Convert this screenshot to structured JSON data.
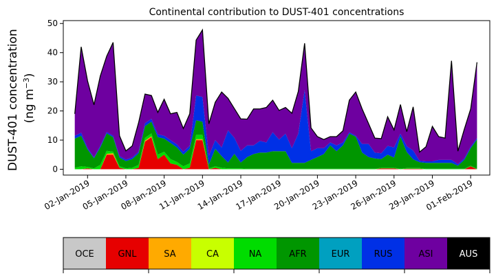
{
  "chart_data": {
    "type": "area",
    "stacked": true,
    "title": "Continental contribution to DUST-401 concentrations",
    "ylabel": "DUST-401 concentration",
    "ylabel_unit_prefix": "(ng m",
    "ylabel_unit_exponent": "−3",
    "ylabel_unit_suffix": ")",
    "ylim": [
      -2,
      51
    ],
    "yticks": [
      0,
      10,
      20,
      30,
      40,
      50
    ],
    "xlim_days": [
      -0.9,
      32.5
    ],
    "xticks": [
      {
        "day": 1,
        "label": "02-Jan-2019"
      },
      {
        "day": 4,
        "label": "05-Jan-2019"
      },
      {
        "day": 7,
        "label": "08-Jan-2019"
      },
      {
        "day": 10,
        "label": "11-Jan-2019"
      },
      {
        "day": 13,
        "label": "14-Jan-2019"
      },
      {
        "day": 16,
        "label": "17-Jan-2019"
      },
      {
        "day": 19,
        "label": "20-Jan-2019"
      },
      {
        "day": 22,
        "label": "23-Jan-2019"
      },
      {
        "day": 25,
        "label": "26-Jan-2019"
      },
      {
        "day": 28,
        "label": "29-Jan-2019"
      },
      {
        "day": 31,
        "label": "01-Feb-2019"
      }
    ],
    "x_start_label": "01-Jan-2019",
    "x_step_days": 0.5,
    "grid": false,
    "total_line_color": "#000000",
    "series": [
      {
        "name": "OCE",
        "color": "#c8c8c8",
        "values": [
          0,
          0,
          0,
          0,
          0,
          0,
          0,
          0,
          0,
          0,
          0,
          0,
          0,
          0,
          0,
          0,
          0,
          0,
          0,
          0,
          0,
          0,
          0,
          0,
          0,
          0,
          0,
          0,
          0,
          0,
          0,
          0,
          0,
          0,
          0,
          0,
          0,
          0,
          0,
          0,
          0,
          0,
          0,
          0,
          0,
          0,
          0,
          0,
          0,
          0,
          0,
          0,
          0,
          0,
          0,
          0,
          0,
          0,
          0,
          0,
          0,
          0,
          0,
          0
        ]
      },
      {
        "name": "GNL",
        "color": "#e60000",
        "values": [
          0,
          0,
          0.3,
          0,
          0,
          5,
          5,
          0.5,
          0,
          0,
          0.5,
          9.5,
          11,
          3.5,
          5,
          2,
          1.5,
          0,
          0.5,
          10,
          10,
          0,
          0.5,
          0,
          0,
          0,
          0,
          0,
          0,
          0,
          0,
          0,
          0,
          0,
          0,
          0,
          0,
          0,
          0,
          0,
          0,
          0,
          0,
          0,
          0,
          0,
          0,
          0,
          0.3,
          0.3,
          0.3,
          0,
          0.2,
          0.2,
          0.2,
          0,
          0,
          0,
          0,
          0,
          0,
          0,
          1,
          0
        ]
      },
      {
        "name": "SA",
        "color": "#ffaa00",
        "values": [
          0,
          0,
          0,
          0,
          0,
          0.3,
          0.5,
          0,
          0,
          0,
          0,
          0.3,
          0.3,
          0,
          0,
          0,
          0,
          0,
          0,
          0.3,
          0.3,
          0,
          0,
          0,
          0,
          0,
          0,
          0,
          0,
          0,
          0,
          0,
          0,
          0,
          0,
          0,
          0,
          0,
          0,
          0,
          0,
          0,
          0,
          0,
          0,
          0,
          0,
          0,
          0,
          0,
          0,
          0,
          0,
          0,
          0,
          0,
          0,
          0,
          0,
          0,
          0,
          0,
          0,
          0
        ]
      },
      {
        "name": "CA",
        "color": "#c8ff00",
        "values": [
          0,
          0,
          0,
          0,
          0,
          0,
          0,
          0,
          0,
          0,
          0,
          0,
          0,
          0,
          0,
          0,
          0,
          0,
          0,
          0,
          0,
          0,
          0,
          0,
          0,
          0,
          0,
          0,
          0,
          0,
          0,
          0,
          0,
          0,
          0,
          0,
          0,
          0,
          0,
          0,
          0,
          0,
          0,
          0,
          0,
          0,
          0,
          0,
          0,
          0,
          0,
          0,
          0,
          0,
          0,
          0,
          0,
          0,
          0,
          0,
          0,
          0,
          0,
          0
        ]
      },
      {
        "name": "NA",
        "color": "#00dc00",
        "values": [
          0.5,
          1,
          0.5,
          0.3,
          1.5,
          1,
          0.5,
          0.5,
          0.3,
          0.5,
          1,
          1,
          1,
          1.5,
          1,
          1.5,
          1,
          1,
          1.5,
          1.5,
          1.5,
          0.3,
          0.5,
          0.5,
          0.3,
          0.3,
          0.3,
          0.2,
          0.2,
          0.2,
          0.2,
          0.2,
          0.2,
          0.2,
          0.2,
          0.2,
          0.2,
          0.2,
          0.2,
          0.2,
          0.2,
          0.2,
          0.2,
          0.2,
          0.2,
          0.2,
          0.2,
          0.2,
          0.2,
          0.2,
          0.2,
          0.2,
          0.2,
          0.2,
          0.2,
          0.2,
          0.2,
          0.2,
          0.2,
          0.2,
          0.2,
          0.2,
          0.2,
          0.2
        ]
      },
      {
        "name": "AFR",
        "color": "#009600",
        "values": [
          10,
          10.5,
          6,
          3.5,
          6,
          6,
          5,
          3,
          2.5,
          3,
          4,
          4,
          4,
          6,
          4.5,
          5.5,
          5,
          4,
          5,
          5,
          4.5,
          1.3,
          6,
          4,
          2,
          5,
          2,
          4,
          5,
          5.5,
          5.5,
          6,
          6,
          6,
          2,
          2,
          2,
          3,
          4,
          5,
          8,
          6,
          8,
          12,
          11,
          5.5,
          4,
          3.5,
          3,
          4.5,
          3.5,
          11,
          5.5,
          3,
          2,
          2,
          2,
          2,
          2,
          2,
          1,
          3,
          6,
          10
        ]
      },
      {
        "name": "EUR",
        "color": "#00a0c0",
        "values": [
          0,
          0,
          0,
          0,
          0,
          0,
          0,
          0,
          0,
          0,
          0,
          0,
          0,
          0,
          0,
          0,
          0,
          0,
          0,
          0,
          0,
          0,
          0,
          0,
          0,
          0,
          0,
          0,
          0,
          0,
          0,
          0,
          0,
          0,
          0,
          0,
          0,
          0,
          0,
          0,
          0,
          0,
          0,
          0,
          0,
          0,
          0,
          0,
          0,
          0,
          0,
          0,
          0,
          0,
          0,
          0,
          0,
          0,
          0,
          0,
          0,
          0,
          0,
          0
        ]
      },
      {
        "name": "RUS",
        "color": "#0030e6",
        "values": [
          1,
          1,
          0.5,
          0.3,
          0.5,
          0.5,
          0.5,
          0.5,
          0.5,
          0.5,
          0.5,
          1,
          1,
          1,
          1,
          1,
          1,
          1,
          1,
          8.5,
          8.5,
          3,
          3,
          3,
          11,
          5.5,
          4,
          4,
          3,
          4,
          3.5,
          6.5,
          4,
          6,
          5,
          10,
          25,
          3,
          3,
          2,
          1,
          2,
          1,
          0.5,
          0.3,
          3,
          4.5,
          2,
          2,
          3,
          3.5,
          1,
          2,
          3,
          0.5,
          0.5,
          0.5,
          1,
          1,
          1,
          0.5,
          0.5,
          0.5,
          0.5
        ]
      },
      {
        "name": "ASI",
        "color": "#6e00a0",
        "values": [
          7.5,
          29.5,
          23,
          18,
          24,
          26,
          32,
          7,
          3,
          4,
          10,
          10,
          8,
          7.5,
          12.5,
          9,
          11,
          8,
          11,
          19,
          23,
          11,
          13,
          19,
          11,
          10,
          11,
          9,
          12.5,
          11,
          12,
          11,
          10,
          9,
          12,
          14.5,
          16,
          8,
          4,
          3,
          2,
          3,
          4,
          11,
          15,
          12,
          7,
          5,
          5,
          10,
          6,
          10,
          5,
          15,
          3,
          5,
          12,
          8,
          7.5,
          34,
          4.5,
          10,
          13,
          26
        ]
      },
      {
        "name": "AUS",
        "color": "#000000",
        "values": [
          0,
          0,
          0,
          0,
          0,
          0,
          0,
          0,
          0,
          0,
          0,
          0,
          0,
          0,
          0,
          0,
          0,
          0,
          0,
          0,
          0,
          0,
          0,
          0,
          0,
          0,
          0,
          0,
          0,
          0,
          0,
          0,
          0,
          0,
          0,
          0,
          0,
          0,
          0,
          0,
          0,
          0,
          0,
          0,
          0,
          0,
          0,
          0,
          0,
          0,
          0,
          0,
          0,
          0,
          0,
          0,
          0,
          0,
          0,
          0,
          0,
          0,
          0,
          0
        ]
      }
    ],
    "legend_placement": "bottom"
  }
}
